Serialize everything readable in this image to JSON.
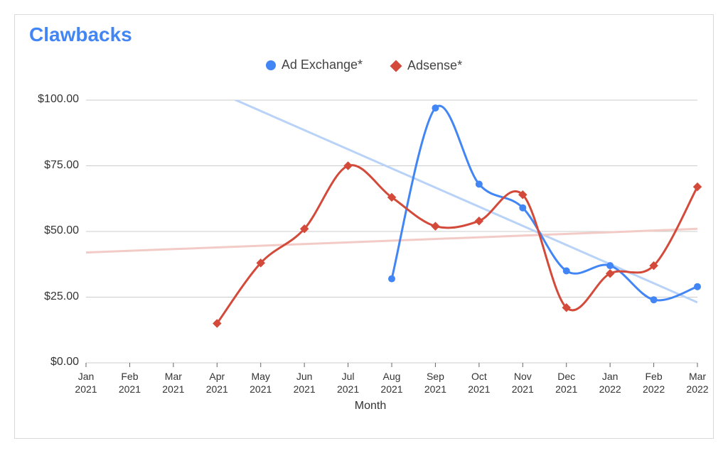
{
  "chart": {
    "type": "line",
    "title": "Clawbacks",
    "title_color": "#4285f4",
    "title_fontsize": 28,
    "background_color": "#ffffff",
    "border_color": "#d9d9d9",
    "xaxis": {
      "title": "Month",
      "categories": [
        "Jan 2021",
        "Feb 2021",
        "Mar 2021",
        "Apr 2021",
        "May 2021",
        "Jun 2021",
        "Jul 2021",
        "Aug 2021",
        "Sep 2021",
        "Oct 2021",
        "Nov 2021",
        "Dec 2021",
        "Jan 2022",
        "Feb 2022",
        "Mar 2022"
      ],
      "label_fontsize": 14,
      "label_color": "#333333"
    },
    "yaxis": {
      "min": 0,
      "max": 100,
      "tick_step": 25,
      "tick_labels": [
        "$0.00",
        "$25.00",
        "$50.00",
        "$75.00",
        "$100.00"
      ],
      "label_fontsize": 16,
      "label_color": "#333333",
      "grid_color": "#cccccc"
    },
    "series": [
      {
        "name": "Ad Exchange*",
        "color": "#4285f4",
        "marker": "circle",
        "marker_size": 10,
        "line_width": 3,
        "data": [
          null,
          null,
          null,
          null,
          null,
          null,
          null,
          32,
          97,
          68,
          59,
          35,
          37,
          24,
          29
        ],
        "trend": {
          "color": "#b9d3f8",
          "line_width": 3,
          "y_start": 125,
          "y_end": 23
        }
      },
      {
        "name": "Adsense*",
        "color": "#d34a3a",
        "marker": "diamond",
        "marker_size": 10,
        "line_width": 3,
        "data": [
          null,
          null,
          null,
          15,
          38,
          51,
          75,
          63,
          52,
          54,
          64,
          21,
          34,
          37,
          67
        ],
        "trend": {
          "color": "#f3cbc6",
          "line_width": 3,
          "y_start": 42,
          "y_end": 51
        }
      }
    ],
    "legend": {
      "fontsize": 18,
      "color": "#444444"
    }
  }
}
